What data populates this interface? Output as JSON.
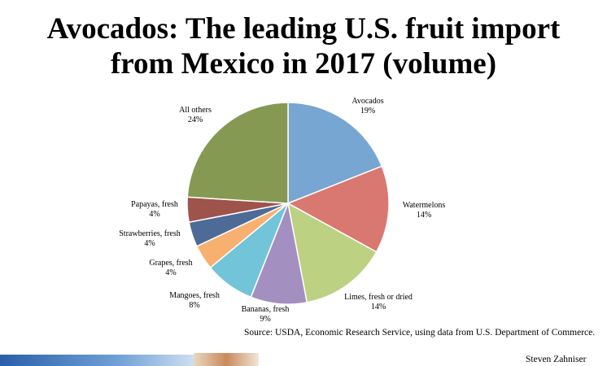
{
  "title_line1": "Avocados: The leading U.S. fruit import",
  "title_line2": "from Mexico in 2017 (volume)",
  "source": "Source: USDA, Economic Research Service, using data from U.S. Department of Commerce.",
  "author": "Steven Zahniser",
  "chart_data": {
    "type": "pie",
    "title": "Avocados: The leading U.S. fruit import from Mexico in 2017 (volume)",
    "slices": [
      {
        "label": "Avocados",
        "value": 19,
        "value_label": "19%",
        "color": "#76a6d1"
      },
      {
        "label": "Watermelons",
        "value": 14,
        "value_label": "14%",
        "color": "#d97870"
      },
      {
        "label": "Limes, fresh or dried",
        "value": 14,
        "value_label": "14%",
        "color": "#bcd182"
      },
      {
        "label": "Bananas, fresh",
        "value": 9,
        "value_label": "9%",
        "color": "#a48fc1"
      },
      {
        "label": "Mangoes, fresh",
        "value": 8,
        "value_label": "8%",
        "color": "#72c4d9"
      },
      {
        "label": "Grapes, fresh",
        "value": 4,
        "value_label": "4%",
        "color": "#f8b070"
      },
      {
        "label": "Strawberries, fresh",
        "value": 4,
        "value_label": "4%",
        "color": "#4e6b97"
      },
      {
        "label": "Papayas, fresh",
        "value": 4,
        "value_label": "4%",
        "color": "#9e534b"
      },
      {
        "label": "All others",
        "value": 24,
        "value_label": "24%",
        "color": "#869953"
      }
    ]
  }
}
